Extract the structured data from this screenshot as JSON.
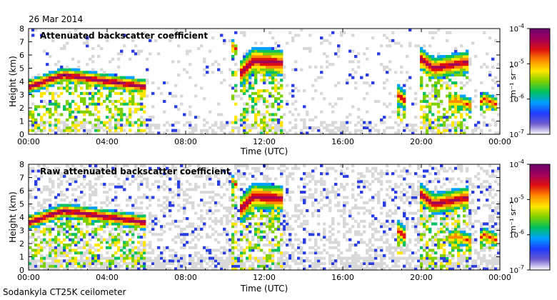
{
  "header": {
    "date": "26 Mar 2014"
  },
  "footer": {
    "caption": "Sodankyla CT25K ceilometer"
  },
  "colors": {
    "axis": "#000000",
    "noise_gray": "#d8d8d8",
    "weak_blue": "#2b3fe0",
    "peak_red": "#c8141e",
    "colormap": [
      "#ffffff",
      "#6a5acd",
      "#1e3cff",
      "#00a0ff",
      "#00c060",
      "#7ed000",
      "#ffe600",
      "#ff8c00",
      "#e01010",
      "#a0005a",
      "#6e006e"
    ]
  },
  "chart_data": [
    {
      "type": "heatmap",
      "title": "Attenuated backscatter coefficient",
      "xlabel": "Time (UTC)",
      "ylabel": "Height (km)",
      "x_ticks": [
        "00:00",
        "04:00",
        "08:00",
        "12:00",
        "16:00",
        "20:00",
        "00:00"
      ],
      "x_range_hours": [
        0,
        24
      ],
      "y_ticks": [
        "0",
        "1",
        "2",
        "3",
        "4",
        "5",
        "6",
        "7",
        "8"
      ],
      "ylim": [
        0,
        8
      ],
      "colorbar": {
        "label": "m⁻¹ sr⁻¹",
        "scale": "log",
        "range": [
          1e-07,
          0.0001
        ],
        "ticks": [
          {
            "mantissa": "10",
            "exponent": "-4",
            "value": 0.0001
          },
          {
            "mantissa": "10",
            "exponent": "-5",
            "value": 1e-05
          },
          {
            "mantissa": "10",
            "exponent": "-6",
            "value": 1e-06
          },
          {
            "mantissa": "10",
            "exponent": "-7",
            "value": 1e-07
          }
        ]
      },
      "noise_level": 0.15,
      "features": [
        {
          "name": "aerosol layer",
          "t0": 0.0,
          "t1": 6.0,
          "h_start": 3.6,
          "h_peak": 4.5,
          "h_end": 3.6,
          "thickness": 0.6,
          "intensity": 0.95,
          "fall_to": 0.2
        },
        {
          "name": "mid-level cloud",
          "t0": 10.8,
          "t1": 13.0,
          "h_start": 4.6,
          "h_peak": 5.6,
          "h_end": 5.4,
          "thickness": 1.1,
          "intensity": 0.9,
          "fall_to": 0.0
        },
        {
          "name": "upper cloud",
          "t0": 10.3,
          "t1": 10.6,
          "h_start": 6.4,
          "h_peak": 6.8,
          "h_end": 6.4,
          "thickness": 0.4,
          "intensity": 0.75,
          "fall_to": 0.0
        },
        {
          "name": "evening cloud",
          "t0": 19.9,
          "t1": 22.4,
          "h_start": 5.8,
          "h_peak": 5.0,
          "h_end": 5.5,
          "thickness": 0.9,
          "intensity": 0.9,
          "fall_to": 0.0
        },
        {
          "name": "low cloud 1",
          "t0": 18.7,
          "t1": 19.2,
          "h_start": 2.7,
          "h_peak": 3.0,
          "h_end": 2.5,
          "thickness": 0.8,
          "intensity": 0.8,
          "fall_to": 1.0
        },
        {
          "name": "low cloud 2",
          "t0": 21.4,
          "t1": 22.5,
          "h_start": 2.4,
          "h_peak": 2.6,
          "h_end": 2.2,
          "thickness": 0.6,
          "intensity": 0.7,
          "fall_to": 1.2
        },
        {
          "name": "low cloud 3",
          "t0": 23.0,
          "t1": 23.8,
          "h_start": 2.5,
          "h_peak": 2.7,
          "h_end": 2.3,
          "thickness": 0.6,
          "intensity": 0.75,
          "fall_to": 1.5
        }
      ]
    },
    {
      "type": "heatmap",
      "title": "Raw attenuated backscatter coefficient",
      "xlabel": "Time (UTC)",
      "ylabel": "Height (km)",
      "x_ticks": [
        "00:00",
        "04:00",
        "08:00",
        "12:00",
        "16:00",
        "20:00",
        "00:00"
      ],
      "x_range_hours": [
        0,
        24
      ],
      "y_ticks": [
        "0",
        "1",
        "2",
        "3",
        "4",
        "5",
        "6",
        "7",
        "8"
      ],
      "ylim": [
        0,
        8
      ],
      "colorbar": {
        "label": "m⁻¹ sr⁻¹",
        "scale": "log",
        "range": [
          1e-07,
          0.0001
        ],
        "ticks": [
          {
            "mantissa": "10",
            "exponent": "-4",
            "value": 0.0001
          },
          {
            "mantissa": "10",
            "exponent": "-5",
            "value": 1e-05
          },
          {
            "mantissa": "10",
            "exponent": "-6",
            "value": 1e-06
          },
          {
            "mantissa": "10",
            "exponent": "-7",
            "value": 1e-07
          }
        ]
      },
      "noise_level": 0.55,
      "features": [
        {
          "name": "aerosol layer",
          "t0": 0.0,
          "t1": 6.0,
          "h_start": 3.6,
          "h_peak": 4.5,
          "h_end": 3.6,
          "thickness": 0.6,
          "intensity": 0.95,
          "fall_to": 0.2
        },
        {
          "name": "mid-level cloud",
          "t0": 10.8,
          "t1": 13.0,
          "h_start": 4.6,
          "h_peak": 5.6,
          "h_end": 5.4,
          "thickness": 1.1,
          "intensity": 0.9,
          "fall_to": 0.0
        },
        {
          "name": "upper cloud",
          "t0": 10.3,
          "t1": 10.6,
          "h_start": 6.4,
          "h_peak": 6.8,
          "h_end": 6.4,
          "thickness": 0.4,
          "intensity": 0.75,
          "fall_to": 0.0
        },
        {
          "name": "evening cloud",
          "t0": 19.9,
          "t1": 22.4,
          "h_start": 5.8,
          "h_peak": 5.0,
          "h_end": 5.5,
          "thickness": 0.9,
          "intensity": 0.9,
          "fall_to": 0.0
        },
        {
          "name": "low cloud 1",
          "t0": 18.7,
          "t1": 19.2,
          "h_start": 2.7,
          "h_peak": 3.0,
          "h_end": 2.5,
          "thickness": 0.8,
          "intensity": 0.8,
          "fall_to": 1.0
        },
        {
          "name": "low cloud 2",
          "t0": 21.4,
          "t1": 22.5,
          "h_start": 2.4,
          "h_peak": 2.6,
          "h_end": 2.2,
          "thickness": 0.6,
          "intensity": 0.7,
          "fall_to": 1.2
        },
        {
          "name": "low cloud 3",
          "t0": 23.0,
          "t1": 23.8,
          "h_start": 2.5,
          "h_peak": 2.7,
          "h_end": 2.3,
          "thickness": 0.6,
          "intensity": 0.75,
          "fall_to": 1.5
        }
      ]
    }
  ]
}
